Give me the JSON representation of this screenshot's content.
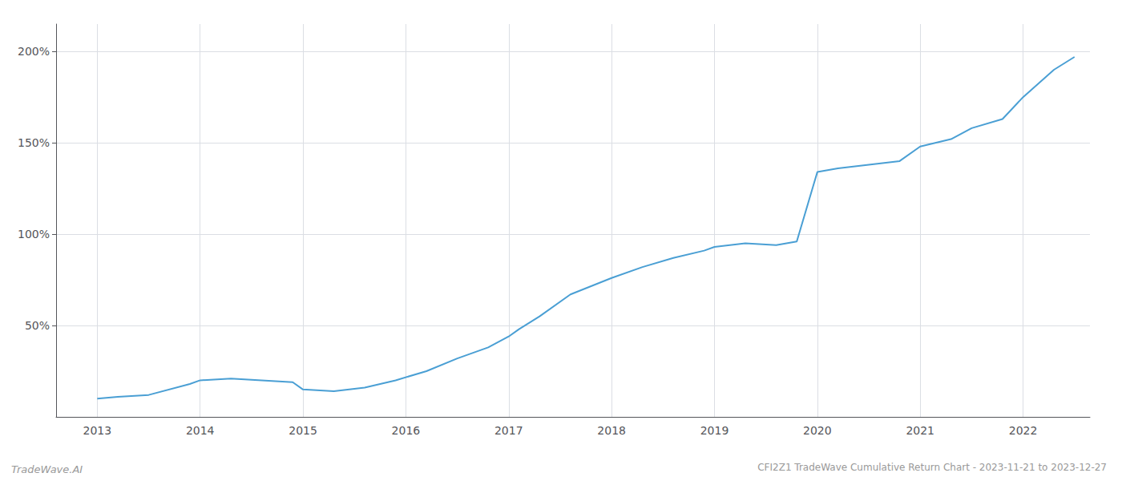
{
  "chart_data": {
    "type": "line",
    "title": "CFI2Z1 TradeWave Cumulative Return Chart - 2023-11-21 to 2023-12-27",
    "annotations": [
      "TradeWave.AI"
    ],
    "x": [
      2013.0,
      2013.2,
      2013.5,
      2013.9,
      2014.0,
      2014.3,
      2014.6,
      2014.9,
      2015.0,
      2015.3,
      2015.6,
      2015.9,
      2016.2,
      2016.5,
      2016.8,
      2017.0,
      2017.1,
      2017.3,
      2017.6,
      2018.0,
      2018.3,
      2018.6,
      2018.9,
      2019.0,
      2019.3,
      2019.6,
      2019.8,
      2020.0,
      2020.2,
      2020.5,
      2020.8,
      2021.0,
      2021.3,
      2021.5,
      2021.8,
      2022.0,
      2022.3,
      2022.5
    ],
    "values": [
      10,
      11,
      12,
      18,
      20,
      21,
      20,
      19,
      15,
      14,
      16,
      20,
      25,
      32,
      38,
      44,
      48,
      55,
      67,
      76,
      82,
      87,
      91,
      93,
      95,
      94,
      96,
      134,
      136,
      138,
      140,
      148,
      152,
      158,
      163,
      175,
      190,
      197
    ],
    "color": "#4a9fd4",
    "xlim": [
      2012.6,
      2022.65
    ],
    "ylim": [
      0,
      215
    ],
    "xticks": [
      2013,
      2014,
      2015,
      2016,
      2017,
      2018,
      2019,
      2020,
      2021,
      2022
    ],
    "yticks": [
      {
        "value": 50,
        "label": "50%"
      },
      {
        "value": 100,
        "label": "100%"
      },
      {
        "value": 150,
        "label": "150%"
      },
      {
        "value": 200,
        "label": "200%"
      }
    ],
    "grid": true
  }
}
